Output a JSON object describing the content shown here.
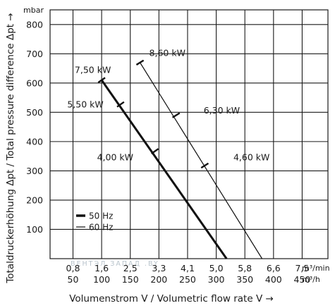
{
  "chart_data": {
    "type": "line",
    "ylabel_unit": "mbar",
    "ylabel": "Totaldruckerhöhung Δpt / Total pressure difference Δpt →",
    "ylim": [
      0,
      850
    ],
    "yticks": [
      100,
      200,
      300,
      400,
      500,
      600,
      700,
      800
    ],
    "xlabel": "Volumenstrom V / Volumetric flow rate V →",
    "x_unit_1": "m³/min",
    "x_unit_2": "m³/h",
    "xlim_m3h": [
      10,
      495
    ],
    "xticks": [
      {
        "min": "0,8",
        "h": "50"
      },
      {
        "min": "1,6",
        "h": "100"
      },
      {
        "min": "2,5",
        "h": "150"
      },
      {
        "min": "3,3",
        "h": "200"
      },
      {
        "min": "4,1",
        "h": "250"
      },
      {
        "min": "5,0",
        "h": "300"
      },
      {
        "min": "5,8",
        "h": "350"
      },
      {
        "min": "6,6",
        "h": "400"
      },
      {
        "min": "7,5",
        "h": "450"
      }
    ],
    "series": [
      {
        "name": "50 Hz",
        "color": "#111111",
        "width": 3,
        "points": [
          [
            100,
            610
          ],
          [
            318,
            0
          ]
        ],
        "markers": [
          {
            "x": 100,
            "y": 610,
            "label": "7,50 kW",
            "lx": 53,
            "ly": 645
          },
          {
            "x": 133,
            "y": 527,
            "label": "5,50 kW",
            "lx": 40,
            "ly": 527
          },
          {
            "x": 193,
            "y": 367,
            "label": "4,00 kW",
            "lx": 92,
            "ly": 347
          }
        ]
      },
      {
        "name": "60 Hz",
        "color": "#111111",
        "width": 1.2,
        "points": [
          [
            167,
            670
          ],
          [
            380,
            0
          ]
        ],
        "markers": [
          {
            "x": 167,
            "y": 670,
            "label": "8,60 kW",
            "lx": 183,
            "ly": 703
          },
          {
            "x": 230,
            "y": 490,
            "label": "6,30 kW",
            "lx": 278,
            "ly": 507
          },
          {
            "x": 280,
            "y": 318,
            "label": "4,60 kW",
            "lx": 330,
            "ly": 347
          }
        ]
      }
    ],
    "legend_position": "bottom-left",
    "grid": true
  },
  "watermark": "ВЕНТЭЛ ЗАПАД .BY"
}
